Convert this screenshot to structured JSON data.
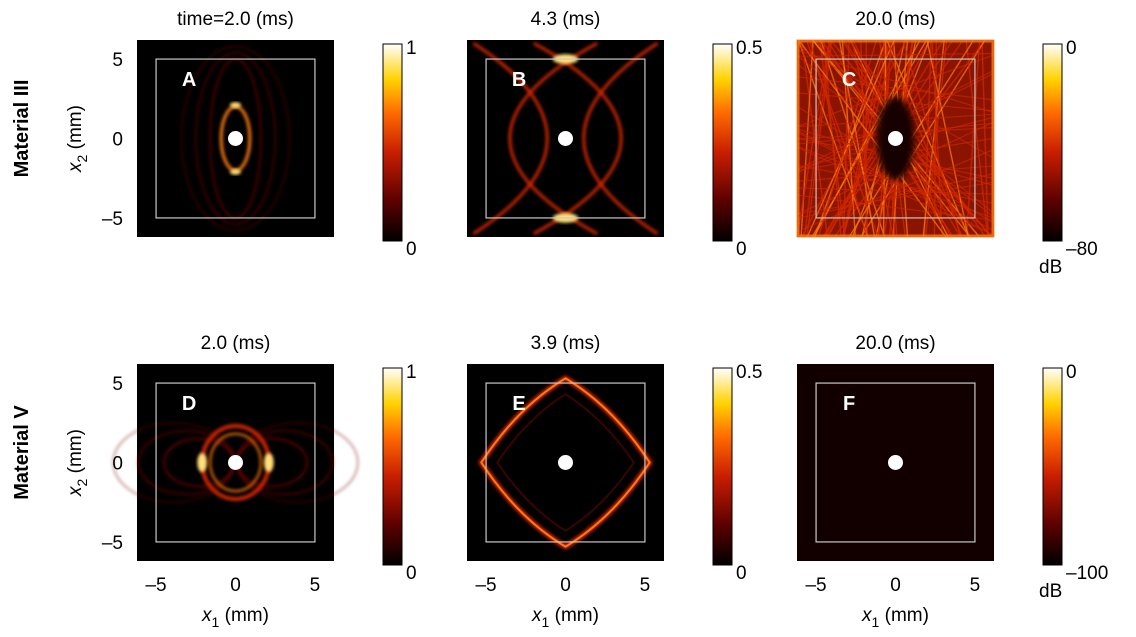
{
  "chart_data": {
    "type": "heatmap",
    "x_axis": {
      "label_var": "x",
      "label_sub": "1",
      "label_unit": "(mm)",
      "ticks": [
        -5,
        0,
        5
      ],
      "tick_labels": [
        "–5",
        "0",
        "5"
      ],
      "range": [
        -6.2,
        6.2
      ]
    },
    "y_axis": {
      "label_var": "x",
      "label_sub": "2",
      "label_unit": "(mm)",
      "ticks": [
        5,
        0,
        -5
      ],
      "tick_labels": [
        "5",
        "0",
        "–5"
      ],
      "range": [
        -6.2,
        6.2
      ]
    },
    "square_halfwidth_mm": 5,
    "rows": [
      {
        "label": "Material III",
        "panels": [
          {
            "id": "A",
            "title": "time=2.0 (ms)",
            "colorbar": {
              "max": "1",
              "min": "0",
              "unit": ""
            },
            "pattern": "inner"
          },
          {
            "id": "B",
            "title": "4.3 (ms)",
            "colorbar": {
              "max": "0.5",
              "min": "0",
              "unit": ""
            },
            "pattern": "crossing"
          },
          {
            "id": "C",
            "title": "20.0 (ms)",
            "colorbar": {
              "max": "0",
              "min": "–80",
              "unit": "dB"
            },
            "pattern": "diffuse"
          }
        ]
      },
      {
        "label": "Material V",
        "panels": [
          {
            "id": "D",
            "title": "2.0 (ms)",
            "colorbar": {
              "max": "1",
              "min": "0",
              "unit": ""
            },
            "pattern": "rings"
          },
          {
            "id": "E",
            "title": "3.9 (ms)",
            "colorbar": {
              "max": "0.5",
              "min": "0",
              "unit": ""
            },
            "pattern": "diamond"
          },
          {
            "id": "F",
            "title": "20.0 (ms)",
            "colorbar": {
              "max": "0",
              "min": "–100",
              "unit": "dB"
            },
            "pattern": "dark"
          }
        ]
      }
    ],
    "colormap": [
      "#000000",
      "#5a0000",
      "#c81e00",
      "#ff6a00",
      "#ffd200",
      "#ffffff"
    ]
  }
}
